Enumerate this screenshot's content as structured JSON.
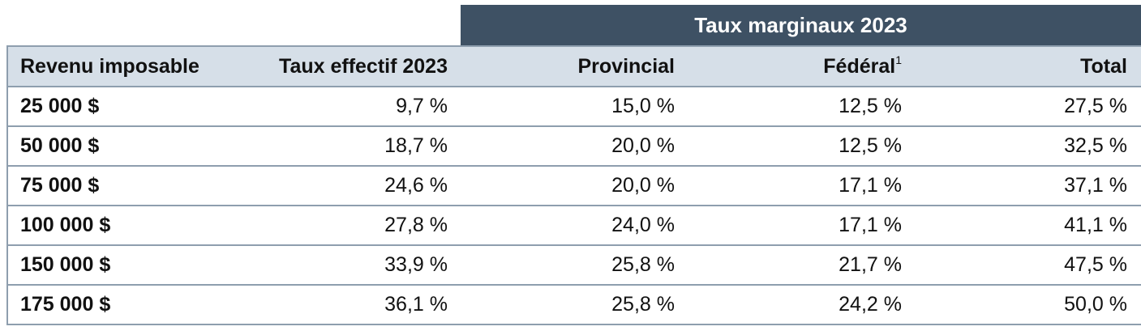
{
  "table": {
    "group_header": "Taux marginaux 2023",
    "columns": {
      "income": "Revenu imposable",
      "effective": "Taux effectif 2023",
      "provincial": "Provincial",
      "federal": "Fédéral",
      "federal_note": "1",
      "total": "Total"
    },
    "rows": [
      {
        "income": "25 000 $",
        "effective": "9,7 %",
        "provincial": "15,0 %",
        "federal": "12,5 %",
        "total": "27,5 %"
      },
      {
        "income": "50 000 $",
        "effective": "18,7 %",
        "provincial": "20,0 %",
        "federal": "12,5 %",
        "total": "32,5 %"
      },
      {
        "income": "75 000 $",
        "effective": "24,6 %",
        "provincial": "20,0 %",
        "federal": "17,1 %",
        "total": "37,1 %"
      },
      {
        "income": "100 000 $",
        "effective": "27,8 %",
        "provincial": "24,0 %",
        "federal": "17,1 %",
        "total": "41,1 %"
      },
      {
        "income": "150 000 $",
        "effective": "33,9 %",
        "provincial": "25,8 %",
        "federal": "21,7 %",
        "total": "47,5 %"
      },
      {
        "income": "175 000 $",
        "effective": "36,1 %",
        "provincial": "25,8 %",
        "federal": "24,2 %",
        "total": "50,0 %"
      }
    ]
  },
  "colors": {
    "group_header_bg": "#3e5164",
    "column_header_bg": "#d6dfe8",
    "border": "#8e9eae"
  }
}
